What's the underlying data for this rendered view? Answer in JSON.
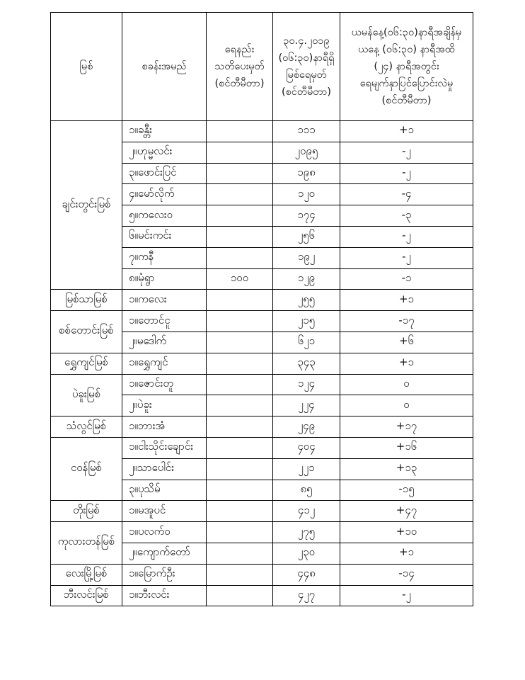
{
  "table": {
    "columns": [
      "မြစ်",
      "စခန်းအမည်",
      "ရေနည်း\nသတိပေးမှတ်\n(စင်တီမီတာ)",
      "၃၀.၄.၂၀၁၉\n(၀၆:၃၀)နာရီရှိ\nမြစ်ရေမှတ်\n(စင်တီမီတာ)",
      "ယမန်နေ့(၀၆:၃၀)နာရီအချိန်မှ\nယနေ့ (၀၆:၃၀) နာရီအထိ\n(၂၄) နာရီအတွင်း\nရေမျက်နှာပြင်ပြောင်းလဲမှု\n(စင်တီမီတာ)"
    ],
    "rivers": [
      {
        "name": "ချင်းတွင်းမြစ်",
        "stations": [
          {
            "name": "၁။ခန္တီး",
            "warning_level_cm": "",
            "water_level_cm": "၁၁၁",
            "change_24h_cm": "+၁"
          },
          {
            "name": "၂။ဟုမ္မလင်း",
            "warning_level_cm": "",
            "water_level_cm": "၂၀၉၅",
            "change_24h_cm": "-၂"
          },
          {
            "name": "၃။ဖောင်းပြင်",
            "warning_level_cm": "",
            "water_level_cm": "၁၉၈",
            "change_24h_cm": "-၂"
          },
          {
            "name": "၄။မော်လိုက်",
            "warning_level_cm": "",
            "water_level_cm": "၁၂၀",
            "change_24h_cm": "-၄"
          },
          {
            "name": "၅။ကလေးဝ",
            "warning_level_cm": "",
            "water_level_cm": "၁၇၄",
            "change_24h_cm": "-၃"
          },
          {
            "name": "၆။မင်းကင်း",
            "warning_level_cm": "",
            "water_level_cm": "၂၅၆",
            "change_24h_cm": "-၂"
          },
          {
            "name": "၇။ကနီ",
            "warning_level_cm": "",
            "water_level_cm": "၁၉၂",
            "change_24h_cm": "-၂"
          },
          {
            "name": "၈။မုံရွာ",
            "warning_level_cm": "၁၀၀",
            "water_level_cm": "၁၂၉",
            "change_24h_cm": "-၁"
          }
        ]
      },
      {
        "name": "မြစ်သာမြစ်",
        "stations": [
          {
            "name": "၁။ကလေး",
            "warning_level_cm": "",
            "water_level_cm": "၂၅၅",
            "change_24h_cm": "+၁"
          }
        ]
      },
      {
        "name": "စစ်တောင်းမြစ်",
        "stations": [
          {
            "name": "၁။တောင်ငူ",
            "warning_level_cm": "",
            "water_level_cm": "၂၁၅",
            "change_24h_cm": "-၁၇"
          },
          {
            "name": "၂။မဒေါက်",
            "warning_level_cm": "",
            "water_level_cm": "၆၂၁",
            "change_24h_cm": "+၆"
          }
        ]
      },
      {
        "name": "ရွှေကျင်မြစ်",
        "stations": [
          {
            "name": "၁။ရွှေကျင်",
            "warning_level_cm": "",
            "water_level_cm": "၃၄၃",
            "change_24h_cm": "+၁"
          }
        ]
      },
      {
        "name": "ပဲခူးမြစ်",
        "stations": [
          {
            "name": "၁။ဇောင်းတူ",
            "warning_level_cm": "",
            "water_level_cm": "၁၂၄",
            "change_24h_cm": "၀"
          },
          {
            "name": "၂။ပဲခူး",
            "warning_level_cm": "",
            "water_level_cm": "၂၂၄",
            "change_24h_cm": "၀"
          }
        ]
      },
      {
        "name": "သံလွင်မြစ်",
        "stations": [
          {
            "name": "၁။ဘားအံ",
            "warning_level_cm": "",
            "water_level_cm": "၂၄၉",
            "change_24h_cm": "+၁၇"
          }
        ]
      },
      {
        "name": "ငဝန်မြစ်",
        "stations": [
          {
            "name": "၁။ငါးသိုင်းချောင်း",
            "warning_level_cm": "",
            "water_level_cm": "၄၀၄",
            "change_24h_cm": "+၁၆"
          },
          {
            "name": "၂။သာပေါင်း",
            "warning_level_cm": "",
            "water_level_cm": "၂၂၁",
            "change_24h_cm": "+၁၃"
          },
          {
            "name": "၃။ပုသိမ်",
            "warning_level_cm": "",
            "water_level_cm": "၈၅",
            "change_24h_cm": "-၁၅"
          }
        ]
      },
      {
        "name": "တိုးမြစ်",
        "stations": [
          {
            "name": "၁။မအူပင်",
            "warning_level_cm": "",
            "water_level_cm": "၄၁၂",
            "change_24h_cm": "+၄၇"
          }
        ]
      },
      {
        "name": "ကုလားတန်မြစ်",
        "stations": [
          {
            "name": "၁။ပလက်ဝ",
            "warning_level_cm": "",
            "water_level_cm": "၂၇၅",
            "change_24h_cm": "+၁၀"
          },
          {
            "name": "၂။ကျောက်တော်",
            "warning_level_cm": "",
            "water_level_cm": "၂၃၀",
            "change_24h_cm": "+၁"
          }
        ]
      },
      {
        "name": "လေးမြို့မြစ်",
        "stations": [
          {
            "name": "၁။မြောက်ဦး",
            "warning_level_cm": "",
            "water_level_cm": "၄၄၈",
            "change_24h_cm": "-၁၄"
          }
        ]
      },
      {
        "name": "ဘီးလင်းမြစ်",
        "stations": [
          {
            "name": "၁။ဘီးလင်း",
            "warning_level_cm": "",
            "water_level_cm": "၄၂၇",
            "change_24h_cm": "-၂"
          }
        ]
      }
    ]
  },
  "colors": {
    "border": "#000000",
    "text": "#111111",
    "background": "#ffffff"
  }
}
